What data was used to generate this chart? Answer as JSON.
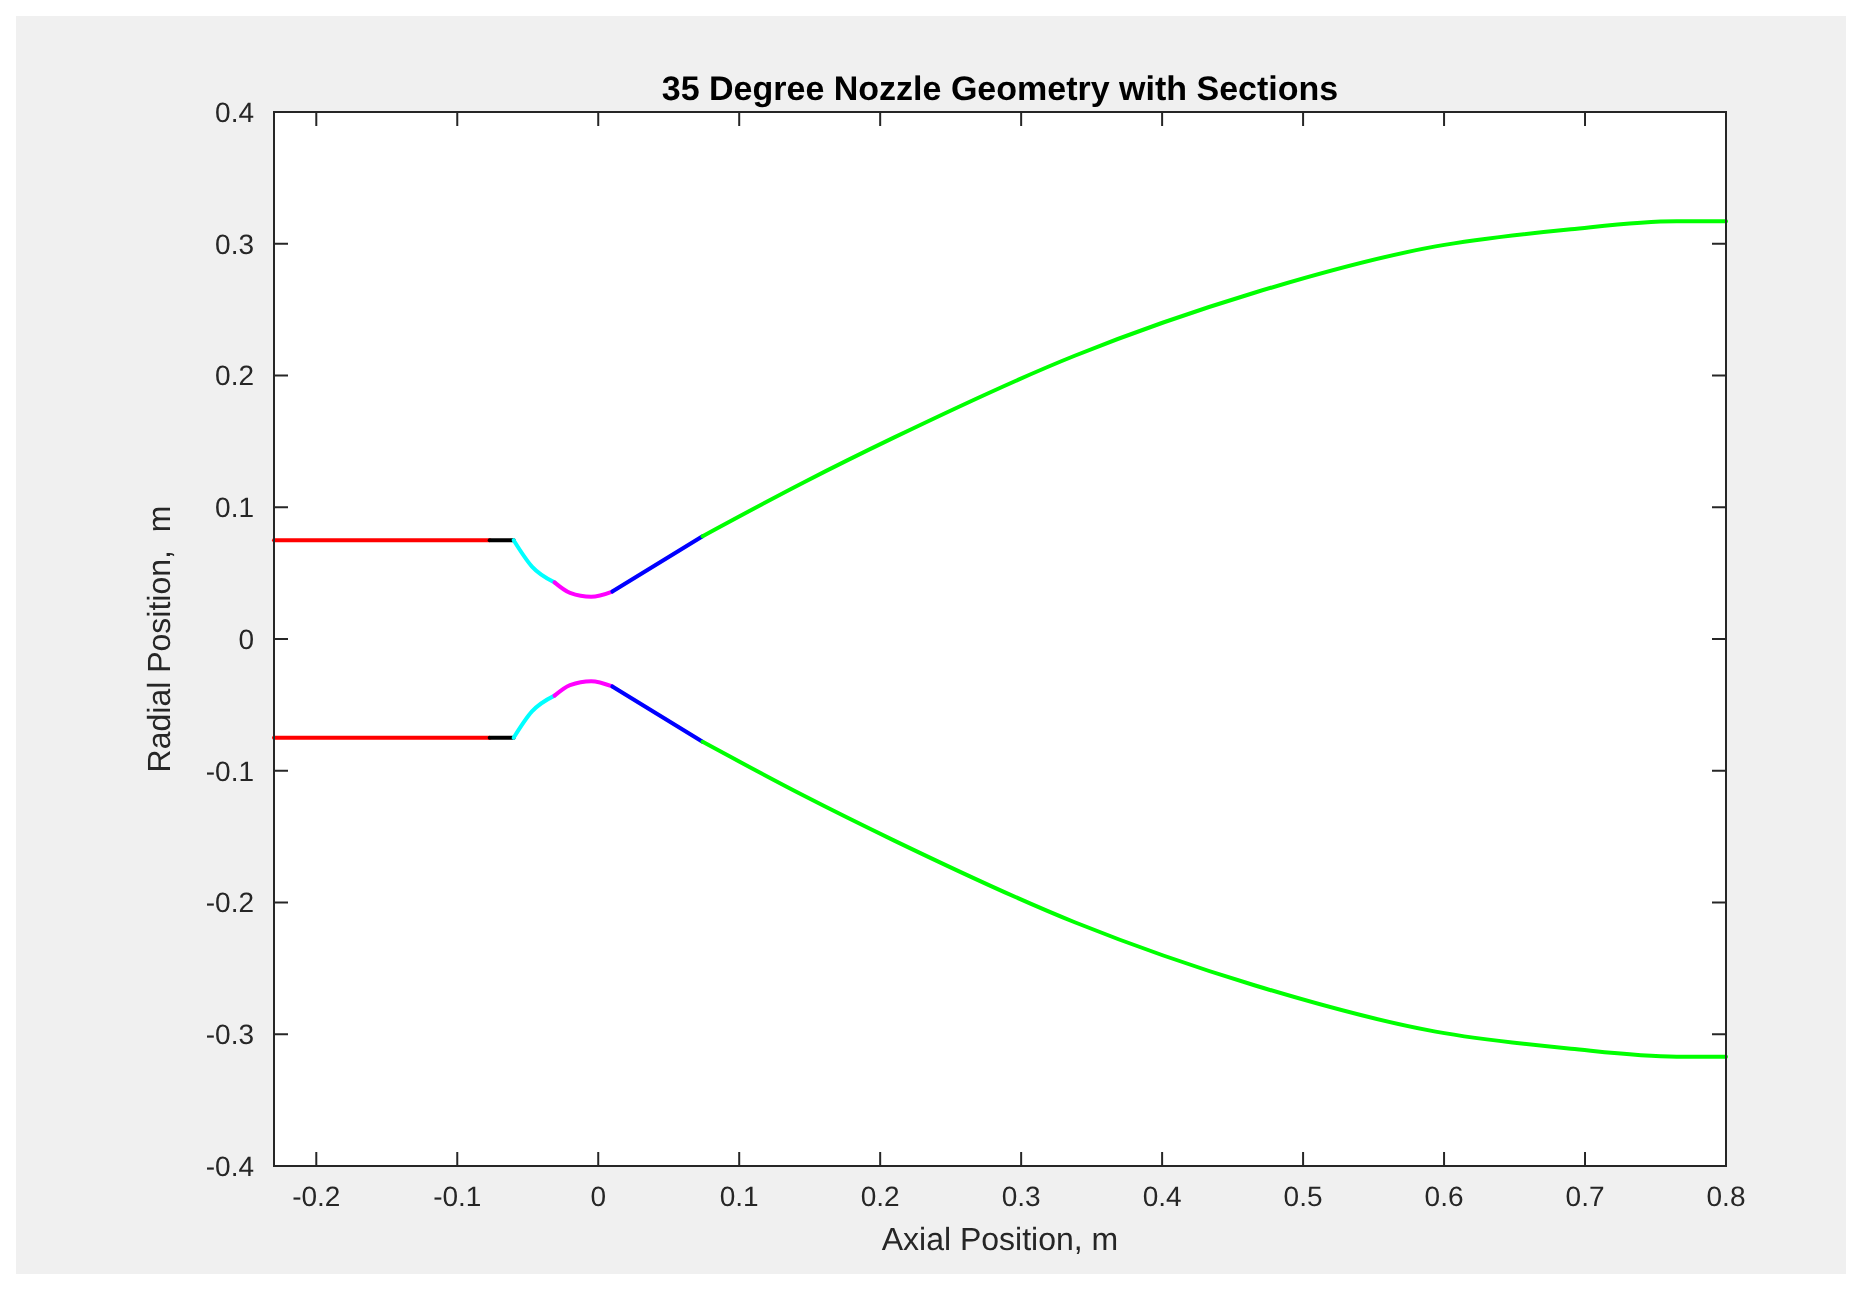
{
  "chart_data": {
    "type": "line",
    "title": "35 Degree Nozzle Geometry with Sections",
    "xlabel": "Axial Position, m",
    "ylabel": "Radial Position,  m",
    "xlim": [
      -0.23,
      0.8
    ],
    "xticks": [
      -0.2,
      -0.1,
      0,
      0.1,
      0.2,
      0.3,
      0.4,
      0.5,
      0.6,
      0.7,
      0.8
    ],
    "ylim": [
      -0.4,
      0.4
    ],
    "yticks": [
      -0.4,
      -0.3,
      -0.2,
      -0.1,
      0,
      0.1,
      0.2,
      0.3,
      0.4
    ],
    "grid": false,
    "marker": "none",
    "line_style": "solid",
    "series": [
      {
        "color": "#ff0000",
        "x": [
          -0.23,
          -0.077
        ],
        "values": [
          0.075,
          0.075
        ]
      },
      {
        "color": "#000000",
        "x": [
          -0.077,
          -0.06
        ],
        "values": [
          0.075,
          0.075
        ]
      },
      {
        "color": "#00ffff",
        "x": [
          -0.06,
          -0.047,
          -0.031
        ],
        "values": [
          0.075,
          0.055,
          0.043
        ]
      },
      {
        "color": "#ff00ff",
        "x": [
          -0.031,
          -0.02,
          -0.005,
          0.01
        ],
        "values": [
          0.043,
          0.035,
          0.032,
          0.036
        ]
      },
      {
        "color": "#0000ff",
        "x": [
          0.01,
          0.074
        ],
        "values": [
          0.036,
          0.078
        ]
      },
      {
        "color": "#00ff00",
        "x": [
          0.074,
          0.146,
          0.21,
          0.338,
          0.466,
          0.594,
          0.69,
          0.765,
          0.8
        ],
        "values": [
          0.078,
          0.119,
          0.153,
          0.215,
          0.263,
          0.298,
          0.311,
          0.317,
          0.317
        ]
      },
      {
        "color": "#ff0000",
        "x": [
          -0.23,
          -0.077
        ],
        "values": [
          -0.075,
          -0.075
        ]
      },
      {
        "color": "#000000",
        "x": [
          -0.077,
          -0.06
        ],
        "values": [
          -0.075,
          -0.075
        ]
      },
      {
        "color": "#00ffff",
        "x": [
          -0.06,
          -0.047,
          -0.031
        ],
        "values": [
          -0.075,
          -0.055,
          -0.043
        ]
      },
      {
        "color": "#ff00ff",
        "x": [
          -0.031,
          -0.02,
          -0.005,
          0.01
        ],
        "values": [
          -0.043,
          -0.035,
          -0.032,
          -0.036
        ]
      },
      {
        "color": "#0000ff",
        "x": [
          0.01,
          0.074
        ],
        "values": [
          -0.036,
          -0.078
        ]
      },
      {
        "color": "#00ff00",
        "x": [
          0.074,
          0.146,
          0.21,
          0.338,
          0.466,
          0.594,
          0.69,
          0.765,
          0.8
        ],
        "values": [
          -0.078,
          -0.119,
          -0.153,
          -0.215,
          -0.263,
          -0.298,
          -0.311,
          -0.317,
          -0.317
        ]
      }
    ]
  }
}
